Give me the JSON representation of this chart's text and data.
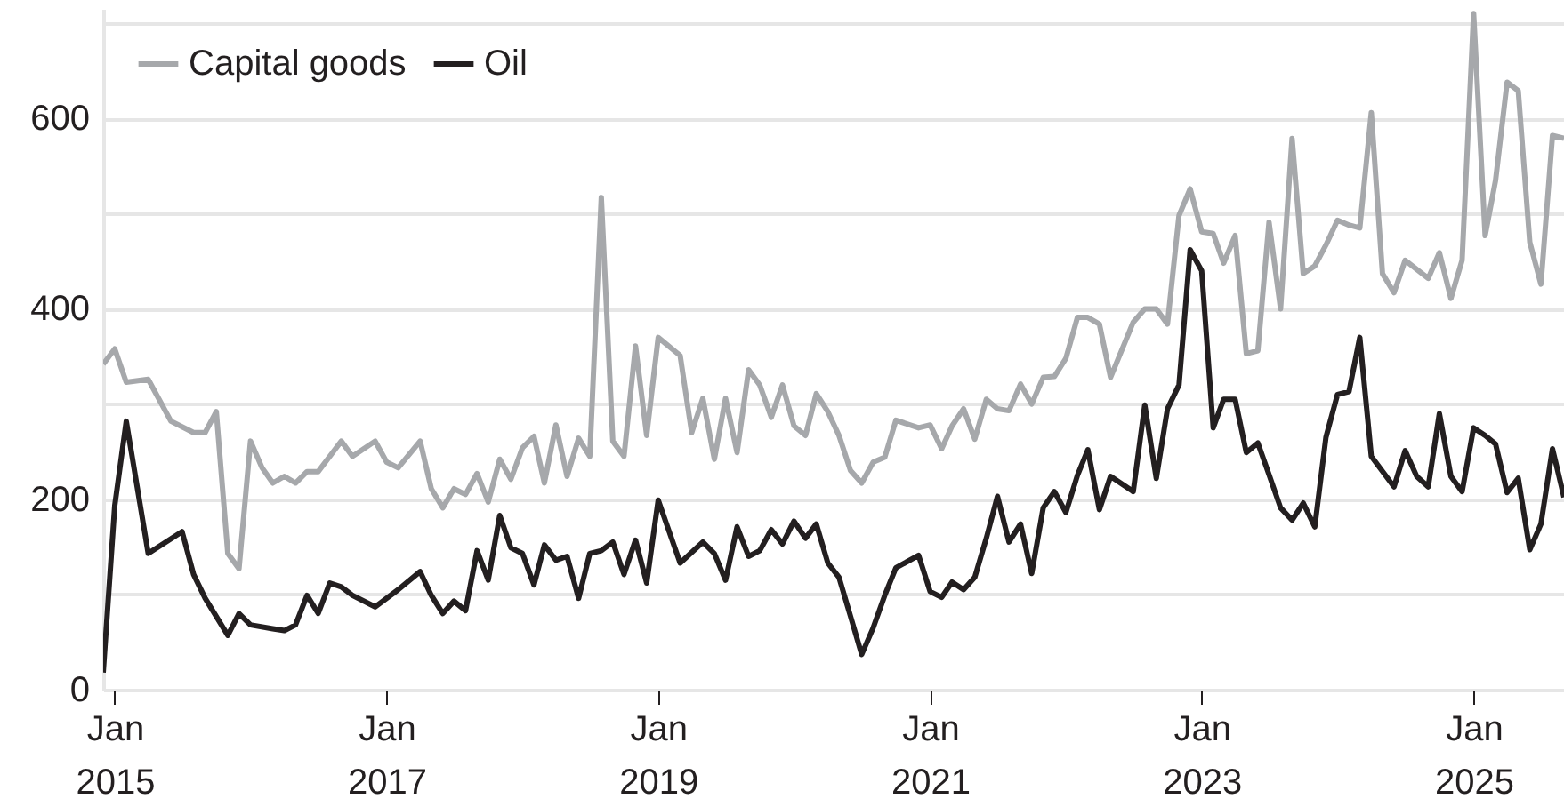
{
  "chart_data": {
    "type": "line",
    "xlim": [
      "2014-12",
      "2025-09"
    ],
    "xticks": [
      {
        "value": "2015-01",
        "label": "Jan 2015"
      },
      {
        "value": "2017-01",
        "label": "Jan 2017"
      },
      {
        "value": "2019-01",
        "label": "Jan 2019"
      },
      {
        "value": "2021-01",
        "label": "Jan 2021"
      },
      {
        "value": "2023-01",
        "label": "Jan 2023"
      },
      {
        "value": "2025-01",
        "label": "Jan 2025"
      }
    ],
    "ylim": [
      0,
      715
    ],
    "yticks": [
      0,
      {
        "value": 100,
        "label": null
      },
      200,
      {
        "value": 300,
        "label": null
      },
      400,
      {
        "value": 500,
        "label": null
      },
      600,
      {
        "value": 700,
        "label": null
      }
    ],
    "grid": "y",
    "legend": "top left",
    "line_style": "solid",
    "marker": "none",
    "series": [
      {
        "name": "Capital goods",
        "color": "#a6a8ab",
        "x": [
          "2014-12",
          "2015-01",
          "2015-02",
          "2015-04",
          "2015-06",
          "2015-08",
          "2015-09",
          "2015-10",
          "2015-11",
          "2015-12",
          "2016-01",
          "2016-02",
          "2016-03",
          "2016-04",
          "2016-05",
          "2016-06",
          "2016-07",
          "2016-09",
          "2016-10",
          "2016-12",
          "2017-01",
          "2017-02",
          "2017-04",
          "2017-05",
          "2017-06",
          "2017-07",
          "2017-08",
          "2017-09",
          "2017-10",
          "2017-11",
          "2017-12",
          "2018-01",
          "2018-02",
          "2018-03",
          "2018-04",
          "2018-05",
          "2018-06",
          "2018-07",
          "2018-08",
          "2018-09",
          "2018-10",
          "2018-11",
          "2018-12",
          "2019-01",
          "2019-03",
          "2019-04",
          "2019-05",
          "2019-06",
          "2019-07",
          "2019-08",
          "2019-09",
          "2019-10",
          "2019-11",
          "2019-12",
          "2020-01",
          "2020-02",
          "2020-03",
          "2020-04",
          "2020-05",
          "2020-06",
          "2020-07",
          "2020-08",
          "2020-09",
          "2020-10",
          "2020-12",
          "2021-01",
          "2021-02",
          "2021-03",
          "2021-04",
          "2021-05",
          "2021-06",
          "2021-07",
          "2021-08",
          "2021-09",
          "2021-10",
          "2021-11",
          "2021-12",
          "2022-01",
          "2022-02",
          "2022-03",
          "2022-04",
          "2022-05",
          "2022-07",
          "2022-08",
          "2022-09",
          "2022-10",
          "2022-11",
          "2022-12",
          "2023-01",
          "2023-02",
          "2023-03",
          "2023-04",
          "2023-05",
          "2023-06",
          "2023-07",
          "2023-08",
          "2023-09",
          "2023-10",
          "2023-11",
          "2023-12",
          "2024-01",
          "2024-02",
          "2024-03",
          "2024-04",
          "2024-05",
          "2024-06",
          "2024-07",
          "2024-09",
          "2024-10",
          "2024-11",
          "2024-12",
          "2025-01",
          "2025-02",
          "2025-03",
          "2025-04",
          "2025-05",
          "2025-06",
          "2025-07",
          "2025-08",
          "2025-09"
        ],
        "values": [
          342,
          358,
          323,
          326,
          282,
          270,
          270,
          292,
          143,
          127,
          261,
          233,
          217,
          224,
          217,
          229,
          229,
          261,
          245,
          261,
          239,
          233,
          261,
          211,
          191,
          211,
          205,
          227,
          197,
          242,
          221,
          254,
          266,
          217,
          278,
          224,
          264,
          245,
          517,
          261,
          245,
          361,
          267,
          370,
          351,
          270,
          306,
          242,
          306,
          249,
          336,
          320,
          286,
          320,
          277,
          267,
          311,
          292,
          267,
          230,
          217,
          239,
          244,
          283,
          275,
          278,
          253,
          277,
          295,
          263,
          305,
          295,
          293,
          321,
          300,
          328,
          329,
          348,
          391,
          391,
          384,
          328,
          386,
          400,
          400,
          384,
          498,
          526,
          481,
          479,
          448,
          477,
          353,
          356,
          491,
          400,
          579,
          437,
          445,
          467,
          493,
          488,
          485,
          606,
          437,
          417,
          451,
          432,
          459,
          411,
          451,
          710,
          477,
          535,
          638,
          629,
          470,
          426,
          582,
          579
        ]
      },
      {
        "name": "Oil",
        "color": "#231f20",
        "x": [
          "2014-12",
          "2015-01",
          "2015-02",
          "2015-04",
          "2015-07",
          "2015-08",
          "2015-09",
          "2015-11",
          "2015-12",
          "2016-01",
          "2016-03",
          "2016-04",
          "2016-05",
          "2016-06",
          "2016-07",
          "2016-08",
          "2016-09",
          "2016-10",
          "2016-12",
          "2017-02",
          "2017-04",
          "2017-05",
          "2017-06",
          "2017-07",
          "2017-08",
          "2017-09",
          "2017-10",
          "2017-11",
          "2017-12",
          "2018-01",
          "2018-02",
          "2018-03",
          "2018-04",
          "2018-05",
          "2018-06",
          "2018-07",
          "2018-08",
          "2018-09",
          "2018-10",
          "2018-11",
          "2018-12",
          "2019-01",
          "2019-03",
          "2019-05",
          "2019-06",
          "2019-07",
          "2019-08",
          "2019-09",
          "2019-10",
          "2019-11",
          "2019-12",
          "2020-01",
          "2020-02",
          "2020-03",
          "2020-04",
          "2020-05",
          "2020-06",
          "2020-07",
          "2020-08",
          "2020-09",
          "2020-10",
          "2020-12",
          "2021-01",
          "2021-02",
          "2021-03",
          "2021-04",
          "2021-05",
          "2021-06",
          "2021-07",
          "2021-08",
          "2021-09",
          "2021-10",
          "2021-11",
          "2021-12",
          "2022-01",
          "2022-02",
          "2022-03",
          "2022-04",
          "2022-05",
          "2022-07",
          "2022-08",
          "2022-09",
          "2022-10",
          "2022-11",
          "2022-12",
          "2023-01",
          "2023-02",
          "2023-03",
          "2023-04",
          "2023-05",
          "2023-06",
          "2023-07",
          "2023-08",
          "2023-09",
          "2023-10",
          "2023-11",
          "2023-12",
          "2024-01",
          "2024-02",
          "2024-03",
          "2024-04",
          "2024-06",
          "2024-07",
          "2024-08",
          "2024-09",
          "2024-10",
          "2024-11",
          "2024-12",
          "2025-01",
          "2025-02",
          "2025-03",
          "2025-04",
          "2025-05",
          "2025-06",
          "2025-07",
          "2025-08",
          "2025-09"
        ],
        "values": [
          18,
          193,
          282,
          143,
          166,
          121,
          96,
          57,
          80,
          68,
          64,
          62,
          68,
          99,
          80,
          112,
          108,
          99,
          87,
          105,
          124,
          99,
          80,
          93,
          83,
          146,
          115,
          183,
          149,
          143,
          110,
          152,
          136,
          140,
          96,
          143,
          146,
          155,
          121,
          157,
          112,
          199,
          133,
          155,
          143,
          115,
          171,
          140,
          146,
          168,
          153,
          177,
          159,
          174,
          133,
          118,
          77,
          37,
          65,
          99,
          128,
          141,
          103,
          97,
          113,
          105,
          118,
          159,
          203,
          155,
          174,
          122,
          191,
          208,
          186,
          225,
          252,
          189,
          224,
          208,
          299,
          222,
          295,
          320,
          462,
          440,
          275,
          305,
          305,
          249,
          259,
          226,
          191,
          178,
          196,
          171,
          265,
          310,
          313,
          370,
          245,
          213,
          251,
          224,
          213,
          290,
          224,
          208,
          275,
          267,
          258,
          207,
          222,
          147,
          174,
          253,
          202
        ]
      }
    ]
  }
}
